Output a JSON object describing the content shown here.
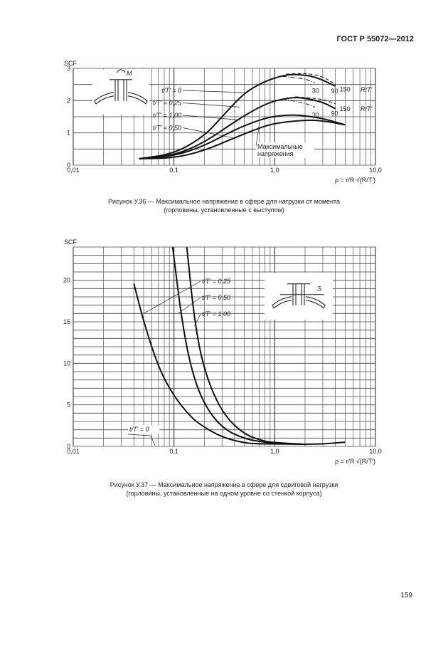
{
  "header": {
    "doc_id": "ГОСТ Р 55072—2012"
  },
  "page_number": "159",
  "figures": [
    {
      "caption_line1": "Рисунок У.36 — Максимальное напряжение в сфере для нагрузки от момента",
      "caption_line2": "(горловины, установленные с выступом)"
    },
    {
      "caption_line1": "Рисунок У.37 — Максимальное напряжение в сфере для сдвиговой нагрузки",
      "caption_line2": "(горловины, установленные на одном уровне со стенкой корпуса)"
    }
  ],
  "chart_data": [
    {
      "type": "line",
      "title": "",
      "ylabel": "SCF",
      "xlabel": "ρ = r/R √(R/T')",
      "xscale": "log",
      "xlim": [
        0.01,
        10
      ],
      "ylim": [
        0,
        3
      ],
      "grid": true,
      "x_ticks": [
        "0,01",
        "0,1",
        "1,0",
        "10,0"
      ],
      "y_ticks": [
        "0",
        "1",
        "2",
        "3"
      ],
      "inset_label": "M",
      "annotation": "Максимальные напряжения",
      "rt_label": "R/T'",
      "series": [
        {
          "name": "t/T' = 0",
          "style": "solid",
          "x": [
            0.045,
            0.1,
            0.2,
            0.3,
            0.5,
            0.8,
            1.2,
            1.6,
            2.5,
            4
          ],
          "y": [
            0.2,
            0.35,
            0.9,
            1.5,
            2.25,
            2.6,
            2.78,
            2.82,
            2.75,
            2.45
          ],
          "end_label": "90"
        },
        {
          "name": "",
          "style": "dashed",
          "x": [
            1.3,
            2,
            3,
            4
          ],
          "y": [
            2.82,
            2.85,
            2.75,
            2.5
          ],
          "end_label": "150"
        },
        {
          "name": "",
          "style": "dashdot",
          "x": [
            1.2,
            2,
            2.5
          ],
          "y": [
            2.75,
            2.68,
            2.55
          ],
          "end_label": "30"
        },
        {
          "name": "t/T' = 0,25",
          "style": "solid",
          "x": [
            0.045,
            0.1,
            0.2,
            0.4,
            0.7,
            1,
            1.5,
            2,
            3,
            4
          ],
          "y": [
            0.2,
            0.3,
            0.7,
            1.35,
            1.8,
            2,
            2.1,
            2.08,
            1.95,
            1.75
          ],
          "end_label": "90"
        },
        {
          "name": "",
          "style": "dashed",
          "x": [
            1.6,
            3,
            4
          ],
          "y": [
            2.12,
            2.05,
            1.9
          ],
          "end_label": "150"
        },
        {
          "name": "",
          "style": "dashdot",
          "x": [
            1.2,
            2,
            2.5
          ],
          "y": [
            2.05,
            1.92,
            1.8
          ],
          "end_label": "30"
        },
        {
          "name": "t/T' = 1,00",
          "style": "solid",
          "x": [
            0.045,
            0.1,
            0.2,
            0.4,
            0.7,
            1,
            1.5,
            2,
            3,
            5
          ],
          "y": [
            0.2,
            0.28,
            0.6,
            1.1,
            1.4,
            1.52,
            1.56,
            1.53,
            1.45,
            1.25
          ]
        },
        {
          "name": "t/T' = 0,50",
          "style": "solid",
          "x": [
            0.045,
            0.1,
            0.2,
            0.4,
            0.7,
            1,
            2,
            3,
            5
          ],
          "y": [
            0.2,
            0.22,
            0.45,
            0.85,
            1.15,
            1.3,
            1.4,
            1.38,
            1.25
          ]
        }
      ]
    },
    {
      "type": "line",
      "title": "",
      "ylabel": "SCF",
      "xlabel": "ρ = r/R √(R/T')",
      "xscale": "log",
      "xlim": [
        0.01,
        10
      ],
      "ylim": [
        0,
        24
      ],
      "grid": true,
      "x_ticks": [
        "0,01",
        "0,1",
        "1,0",
        "10,0"
      ],
      "y_ticks": [
        "0",
        "5",
        "10",
        "15",
        "20"
      ],
      "inset_label": "S",
      "annotation": "t/T' = 0",
      "series": [
        {
          "name": "t/T' = 0,25",
          "x": [
            0.04,
            0.05,
            0.07,
            0.1,
            0.15,
            0.2,
            0.3,
            0.5,
            0.7,
            1,
            2,
            3,
            5
          ],
          "y": [
            19.6,
            15,
            9.5,
            6,
            3.4,
            2.3,
            1.1,
            0.4,
            0.3,
            0.3,
            0.25,
            0.3,
            0.5
          ]
        },
        {
          "name": "t/T' = 0,50",
          "x": [
            0.097,
            0.12,
            0.15,
            0.2,
            0.3,
            0.5,
            0.8,
            1,
            2
          ],
          "y": [
            24,
            15,
            9,
            5,
            2.2,
            0.9,
            0.5,
            0.4,
            0.25
          ]
        },
        {
          "name": "t/T' = 1,00",
          "x": [
            0.134,
            0.16,
            0.2,
            0.3,
            0.5,
            0.8,
            1,
            2
          ],
          "y": [
            24,
            15,
            9,
            4,
            1.4,
            0.6,
            0.45,
            0.25
          ]
        }
      ]
    }
  ]
}
